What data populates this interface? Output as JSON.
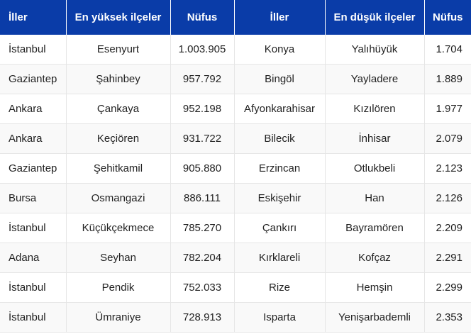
{
  "headers": [
    "İller",
    "En yüksek ilçeler",
    "Nüfus",
    "İller",
    "En düşük ilçeler",
    "Nüfus"
  ],
  "rows": [
    [
      "İstanbul",
      "Esenyurt",
      "1.003.905",
      "Konya",
      "Yalıhüyük",
      "1.704"
    ],
    [
      "Gaziantep",
      "Şahinbey",
      "957.792",
      "Bingöl",
      "Yayladere",
      "1.889"
    ],
    [
      "Ankara",
      "Çankaya",
      "952.198",
      "Afyonkarahisar",
      "Kızılören",
      "1.977"
    ],
    [
      "Ankara",
      "Keçiören",
      "931.722",
      "Bilecik",
      "İnhisar",
      "2.079"
    ],
    [
      "Gaziantep",
      "Şehitkamil",
      "905.880",
      "Erzincan",
      "Otlukbeli",
      "2.123"
    ],
    [
      "Bursa",
      "Osmangazi",
      "886.111",
      "Eskişehir",
      "Han",
      "2.126"
    ],
    [
      "İstanbul",
      "Küçükçekmece",
      "785.270",
      "Çankırı",
      "Bayramören",
      "2.209"
    ],
    [
      "Adana",
      "Seyhan",
      "782.204",
      "Kırklareli",
      "Kofçaz",
      "2.291"
    ],
    [
      "İstanbul",
      "Pendik",
      "752.033",
      "Rize",
      "Hemşin",
      "2.299"
    ],
    [
      "İstanbul",
      "Ümraniye",
      "728.913",
      "Isparta",
      "Yenişarbademli",
      "2.353"
    ]
  ],
  "colors": {
    "header_bg": "#0a3ca8",
    "header_text": "#ffffff",
    "cell_text": "#222222",
    "grid": "#e6e6e6"
  }
}
